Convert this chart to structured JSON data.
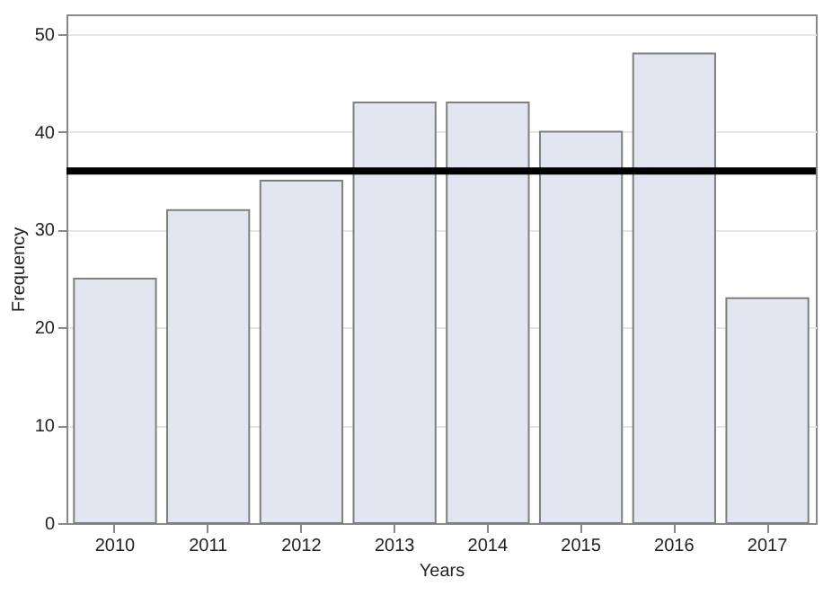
{
  "chart_data": {
    "type": "bar",
    "xlabel": "Years",
    "ylabel": "Frequency",
    "categories": [
      "2010",
      "2011",
      "2012",
      "2013",
      "2014",
      "2015",
      "2016",
      "2017"
    ],
    "values": [
      25,
      32,
      35,
      43,
      43,
      40,
      48,
      23
    ],
    "color": "#e1e6f1",
    "ylim": [
      0,
      52
    ],
    "yticks": [
      0,
      10,
      20,
      30,
      40,
      50
    ],
    "grid": "y",
    "ref_lines": [
      {
        "axis": "y",
        "value": 36,
        "color": "#000000"
      }
    ]
  }
}
